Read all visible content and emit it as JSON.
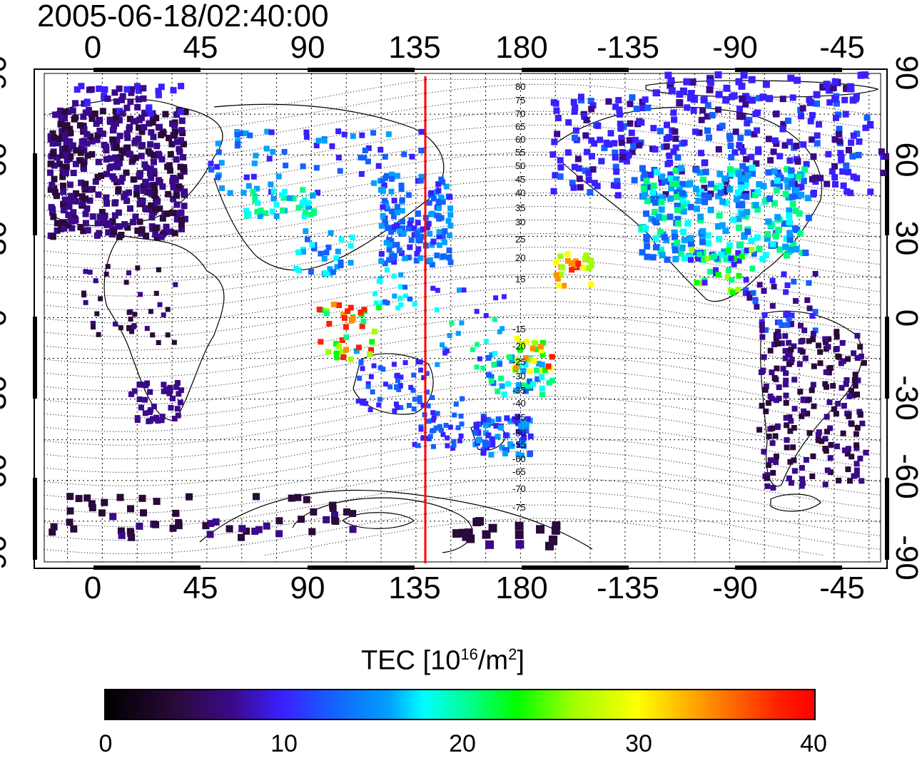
{
  "timestamp": "2005-06-18/02:40:00",
  "axes": {
    "lon_ticks": [
      "0",
      "45",
      "90",
      "135",
      "180",
      "-135",
      "-90",
      "-45"
    ],
    "lat_ticks": [
      "90",
      "60",
      "30",
      "0",
      "-30",
      "-60",
      "-90"
    ],
    "lon_range": [
      -25,
      335
    ],
    "lat_range": [
      -90,
      90
    ]
  },
  "meridian_line": {
    "lon": 140,
    "color": "#ff0000"
  },
  "contour_labels_north": [
    "80",
    "75",
    "70",
    "65",
    "60",
    "55",
    "50",
    "45",
    "40",
    "35",
    "30",
    "25",
    "20",
    "15"
  ],
  "contour_labels_south": [
    "-15",
    "-20",
    "-25",
    "-30",
    "-35",
    "-40",
    "-45",
    "-50",
    "-55",
    "-60",
    "-65",
    "-70",
    "-75"
  ],
  "colorbar": {
    "title": "TEC  [10",
    "title_sup1": "16",
    "title_mid": "/m",
    "title_sup2": "2",
    "title_end": "]",
    "ticks": [
      "0",
      "10",
      "20",
      "30",
      "40"
    ],
    "range": [
      0,
      40
    ]
  },
  "tec_colors": [
    "#2a0a3a",
    "#3a0a8a",
    "#3a20ff",
    "#1460ff",
    "#00a0ff",
    "#00ffff",
    "#00ff80",
    "#00ff00",
    "#a0ff00",
    "#ffff00",
    "#ff9000",
    "#ff2000"
  ]
}
